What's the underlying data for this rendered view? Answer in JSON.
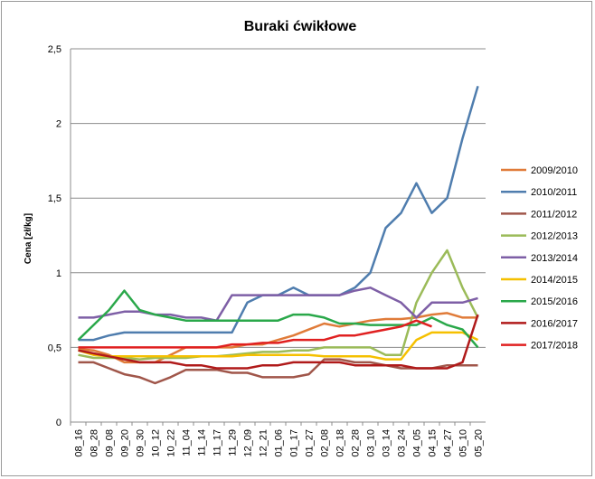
{
  "chart_data": {
    "type": "line",
    "title": "Buraki ćwikłowe",
    "ylabel": "Cena [zł/kg]",
    "xlabel": "",
    "ylim": [
      0,
      2.5
    ],
    "yticks": [
      "0",
      "0,5",
      "1",
      "1,5",
      "2",
      "2,5"
    ],
    "ytick_values": [
      0,
      0.5,
      1,
      1.5,
      2,
      2.5
    ],
    "grid": "horizontal",
    "legend_position": "right",
    "x": [
      "08_16",
      "08_28",
      "09_08",
      "09_20",
      "09_30",
      "10_12",
      "10_22",
      "11_04",
      "11_14",
      "11_17",
      "11_29",
      "12_09",
      "12_21",
      "01_06",
      "01_17",
      "01_27",
      "02_08",
      "02_18",
      "02_28",
      "03_10",
      "03_14",
      "03_24",
      "04_05",
      "04_15",
      "04_27",
      "05_10",
      "05_20"
    ],
    "series": [
      {
        "name": "2009/2010",
        "color": "#e07b39",
        "values": [
          0.49,
          0.48,
          0.45,
          0.4,
          0.4,
          0.4,
          0.45,
          0.5,
          0.5,
          0.5,
          0.5,
          0.52,
          0.52,
          0.55,
          0.58,
          0.62,
          0.66,
          0.64,
          0.66,
          0.68,
          0.69,
          0.69,
          0.7,
          0.72,
          0.73,
          0.7,
          0.7
        ]
      },
      {
        "name": "2010/2011",
        "color": "#4f7dae",
        "values": [
          0.55,
          0.55,
          0.58,
          0.6,
          0.6,
          0.6,
          0.6,
          0.6,
          0.6,
          0.6,
          0.6,
          0.8,
          0.85,
          0.85,
          0.9,
          0.85,
          0.85,
          0.85,
          0.9,
          1.0,
          1.3,
          1.4,
          1.6,
          1.4,
          1.5,
          1.9,
          2.25
        ]
      },
      {
        "name": "2011/2012",
        "color": "#a0564a",
        "values": [
          0.4,
          0.4,
          0.36,
          0.32,
          0.3,
          0.26,
          0.3,
          0.35,
          0.35,
          0.35,
          0.33,
          0.33,
          0.3,
          0.3,
          0.3,
          0.32,
          0.42,
          0.42,
          0.4,
          0.4,
          0.38,
          0.36,
          0.36,
          0.36,
          0.38,
          0.38,
          0.38
        ]
      },
      {
        "name": "2012/2013",
        "color": "#9bbb59",
        "values": [
          0.45,
          0.43,
          0.43,
          0.43,
          0.42,
          0.43,
          0.43,
          0.43,
          0.44,
          0.44,
          0.45,
          0.46,
          0.47,
          0.47,
          0.48,
          0.48,
          0.5,
          0.5,
          0.5,
          0.5,
          0.45,
          0.45,
          0.8,
          1.0,
          1.15,
          0.9,
          0.7
        ]
      },
      {
        "name": "2013/2014",
        "color": "#7e5fa6",
        "values": [
          0.7,
          0.7,
          0.72,
          0.74,
          0.74,
          0.72,
          0.72,
          0.7,
          0.7,
          0.68,
          0.85,
          0.85,
          0.85,
          0.85,
          0.85,
          0.85,
          0.85,
          0.85,
          0.88,
          0.9,
          0.85,
          0.8,
          0.7,
          0.8,
          0.8,
          0.8,
          0.83
        ]
      },
      {
        "name": "2014/2015",
        "color": "#f5c000",
        "values": [
          0.48,
          0.45,
          0.44,
          0.44,
          0.44,
          0.44,
          0.44,
          0.44,
          0.44,
          0.44,
          0.44,
          0.45,
          0.45,
          0.45,
          0.45,
          0.45,
          0.44,
          0.44,
          0.44,
          0.44,
          0.42,
          0.42,
          0.55,
          0.6,
          0.6,
          0.6,
          0.55
        ]
      },
      {
        "name": "2015/2016",
        "color": "#2aa84a",
        "values": [
          0.55,
          0.65,
          0.75,
          0.88,
          0.75,
          0.72,
          0.7,
          0.68,
          0.68,
          0.68,
          0.68,
          0.68,
          0.68,
          0.68,
          0.72,
          0.72,
          0.7,
          0.66,
          0.66,
          0.65,
          0.65,
          0.65,
          0.65,
          0.7,
          0.65,
          0.62,
          0.5
        ]
      },
      {
        "name": "2016/2017",
        "color": "#b01a1a",
        "values": [
          0.48,
          0.46,
          0.44,
          0.42,
          0.4,
          0.4,
          0.4,
          0.38,
          0.38,
          0.36,
          0.36,
          0.36,
          0.38,
          0.38,
          0.4,
          0.4,
          0.4,
          0.4,
          0.38,
          0.38,
          0.38,
          0.38,
          0.36,
          0.36,
          0.36,
          0.4,
          0.72
        ]
      },
      {
        "name": "2017/2018",
        "color": "#e02020",
        "values": [
          0.5,
          0.5,
          0.5,
          0.5,
          0.5,
          0.5,
          0.5,
          0.5,
          0.5,
          0.5,
          0.52,
          0.52,
          0.53,
          0.53,
          0.55,
          0.55,
          0.55,
          0.58,
          0.58,
          0.6,
          0.62,
          0.64,
          0.68,
          0.64,
          null,
          null,
          null
        ]
      }
    ]
  }
}
